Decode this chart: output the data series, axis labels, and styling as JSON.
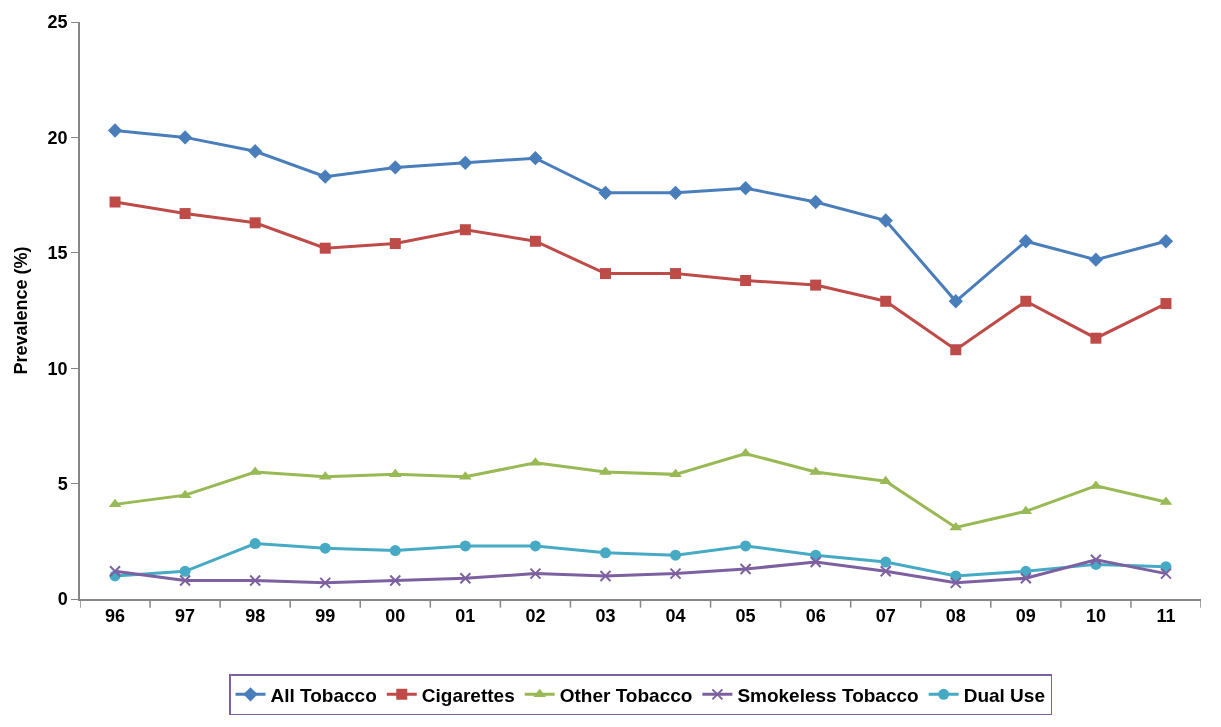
{
  "chart_data": {
    "type": "line",
    "ylabel": "Prevalence (%)",
    "categories": [
      "96",
      "97",
      "98",
      "99",
      "00",
      "01",
      "02",
      "03",
      "04",
      "05",
      "06",
      "07",
      "08",
      "09",
      "10",
      "11"
    ],
    "ylim": [
      0,
      25
    ],
    "yticks": [
      0,
      5,
      10,
      15,
      20,
      25
    ],
    "legend": "bottom",
    "series": [
      {
        "name": "All Tobacco",
        "color": "#4a7ebb",
        "marker": "diamond",
        "values": [
          20.3,
          20.0,
          19.4,
          18.3,
          18.7,
          18.9,
          19.1,
          17.6,
          17.6,
          17.8,
          17.2,
          16.4,
          12.9,
          15.5,
          14.7,
          15.5
        ]
      },
      {
        "name": "Cigarettes",
        "color": "#be4b48",
        "marker": "square",
        "values": [
          17.2,
          16.7,
          16.3,
          15.2,
          15.4,
          16.0,
          15.5,
          14.1,
          14.1,
          13.8,
          13.6,
          12.9,
          10.8,
          12.9,
          11.3,
          12.8
        ]
      },
      {
        "name": "Other Tobacco",
        "color": "#98b954",
        "marker": "triangle",
        "values": [
          4.1,
          4.5,
          5.5,
          5.3,
          5.4,
          5.3,
          5.9,
          5.5,
          5.4,
          6.3,
          5.5,
          5.1,
          3.1,
          3.8,
          4.9,
          4.2
        ]
      },
      {
        "name": "Smokeless Tobacco",
        "color": "#7d60a0",
        "marker": "cross",
        "values": [
          1.2,
          0.8,
          0.8,
          0.7,
          0.8,
          0.9,
          1.1,
          1.0,
          1.1,
          1.3,
          1.6,
          1.2,
          0.7,
          0.9,
          1.7,
          1.1
        ]
      },
      {
        "name": "Dual Use",
        "color": "#46aac5",
        "marker": "circle",
        "values": [
          1.0,
          1.2,
          2.4,
          2.2,
          2.1,
          2.3,
          2.3,
          2.0,
          1.9,
          2.3,
          1.9,
          1.6,
          1.0,
          1.2,
          1.5,
          1.4
        ]
      }
    ]
  }
}
